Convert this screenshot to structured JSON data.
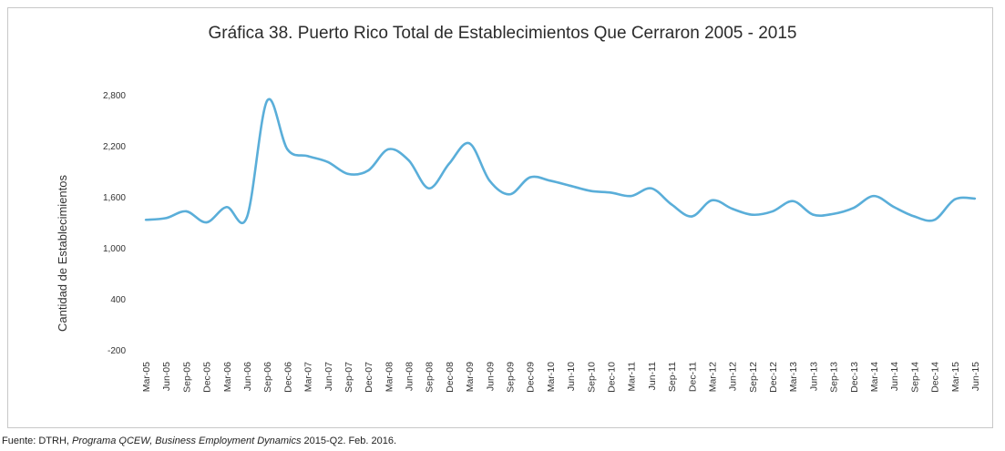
{
  "chart_data": {
    "type": "line",
    "title": "Gráfica 38.  Puerto Rico Total de Establecimientos Que Cerraron 2005 - 2015",
    "xlabel": "",
    "ylabel": "Cantidad de Establecimientos",
    "y_tick_labels": [
      "2,800",
      "2,200",
      "1,600",
      "1,000",
      "400",
      "-200"
    ],
    "y_ticks": [
      2800,
      2200,
      1600,
      1000,
      400,
      -200
    ],
    "ylim": [
      -200,
      2800
    ],
    "grid": false,
    "legend": "none",
    "line_color": "#5aaed9",
    "x_tick_labels": [
      "Mar-05",
      "Jun-05",
      "Sep-05",
      "Dec-05",
      "Mar-06",
      "Jun-06",
      "Sep-06",
      "Dec-06",
      "Mar-07",
      "Jun-07",
      "Sep-07",
      "Dec-07",
      "Mar-08",
      "Jun-08",
      "Sep-08",
      "Dec-08",
      "Mar-09",
      "Jun-09",
      "Sep-09",
      "Dec-09",
      "Mar-10",
      "Jun-10",
      "Sep-10",
      "Dec-10",
      "Mar-11",
      "Jun-11",
      "Sep-11",
      "Dec-11",
      "Mar-12",
      "Jun-12",
      "Sep-12",
      "Dec-12",
      "Mar-13",
      "Jun-13",
      "Sep-13",
      "Dec-13",
      "Mar-14",
      "Jun-14",
      "Sep-14",
      "Dec-14",
      "Mar-15",
      "Jun-15"
    ],
    "series": [
      {
        "values": [
          1340,
          1360,
          1440,
          1310,
          1490,
          1370,
          2740,
          2170,
          2090,
          2020,
          1880,
          1920,
          2170,
          2040,
          1710,
          2000,
          2240,
          1800,
          1640,
          1840,
          1800,
          1740,
          1680,
          1660,
          1620,
          1710,
          1520,
          1380,
          1570,
          1470,
          1400,
          1440,
          1560,
          1400,
          1410,
          1480,
          1620,
          1490,
          1380,
          1340,
          1580,
          1590
        ]
      }
    ]
  },
  "source": {
    "prefix": "Fuente:  DTRH, ",
    "italic": "Programa QCEW, Business Employment Dynamics",
    "suffix": " 2015-Q2.  Feb. 2016."
  }
}
